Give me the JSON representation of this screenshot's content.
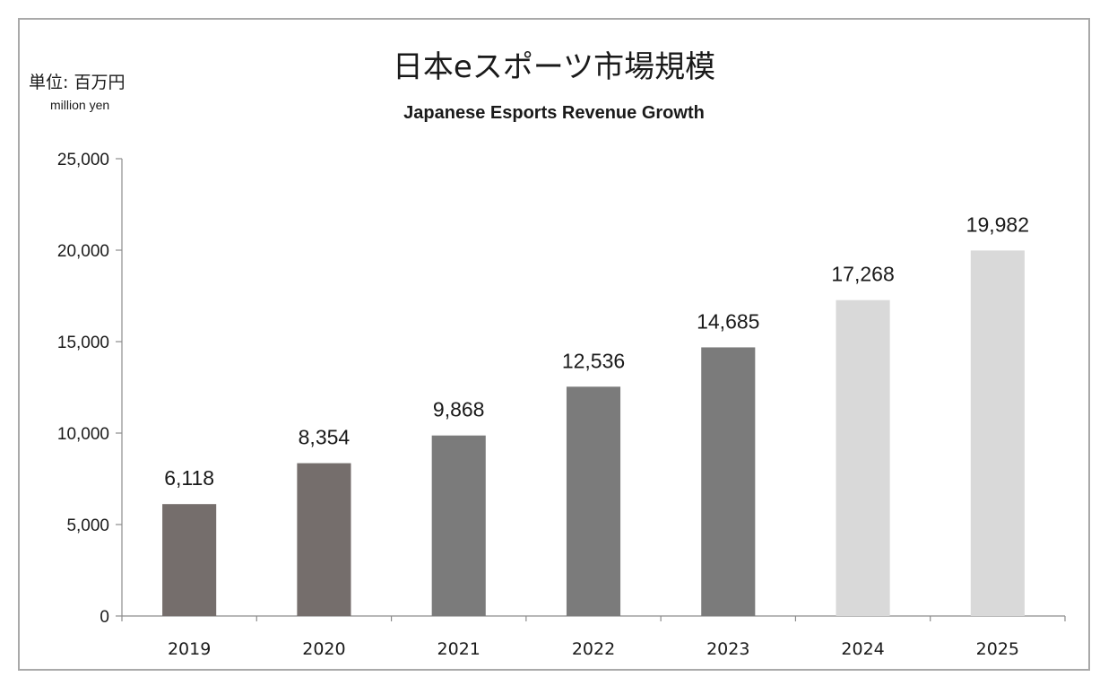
{
  "chart_data": {
    "type": "bar",
    "title": "日本eスポーツ市場規模",
    "subtitle": "Japanese Esports Revenue Growth",
    "unit_label": "単位: 百万円",
    "unit_label_en": "million yen",
    "categories": [
      "2019",
      "2020",
      "2021",
      "2022",
      "2023",
      "2024",
      "2025"
    ],
    "values": [
      6118,
      8354,
      9868,
      12536,
      14685,
      17268,
      19982
    ],
    "value_labels": [
      "6,118",
      "8,354",
      "9,868",
      "12,536",
      "14,685",
      "17,268",
      "19,982"
    ],
    "bar_colors": [
      "#756e6c",
      "#756e6c",
      "#7b7b7b",
      "#7b7b7b",
      "#7b7b7b",
      "#d9d9d9",
      "#d9d9d9"
    ],
    "ylim": [
      0,
      25000
    ],
    "yticks": [
      0,
      5000,
      10000,
      15000,
      20000,
      25000
    ],
    "ytick_labels": [
      "0",
      "5,000",
      "10,000",
      "15,000",
      "20,000",
      "25,000"
    ],
    "grid": false,
    "legend": "none"
  }
}
